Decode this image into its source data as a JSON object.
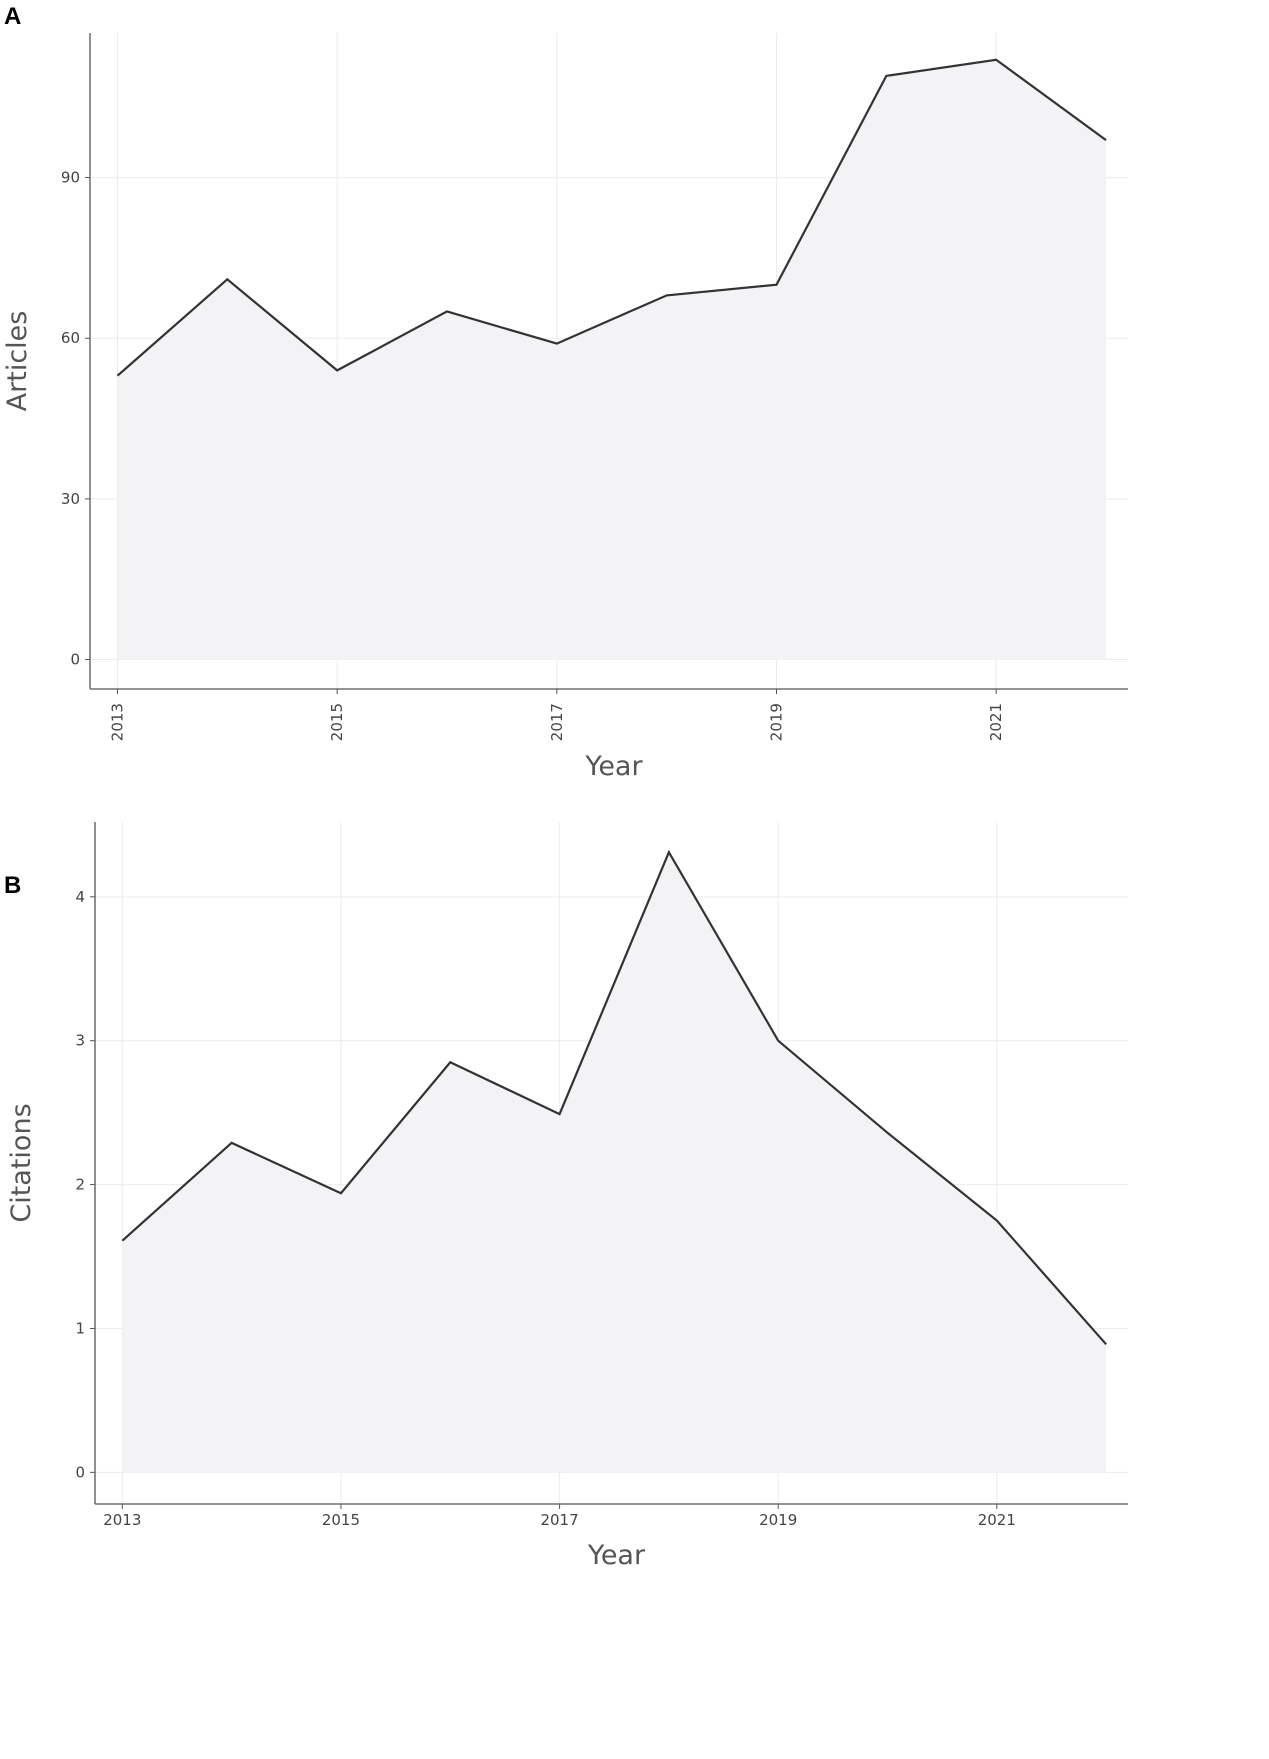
{
  "chart_data": [
    {
      "type": "area",
      "panel_label": "A",
      "xlabel": "Year",
      "ylabel": "Articles",
      "x": [
        2013,
        2014,
        2015,
        2016,
        2017,
        2018,
        2019,
        2020,
        2021,
        2022
      ],
      "values": [
        53,
        71,
        54,
        65,
        59,
        68,
        70,
        109,
        112,
        97
      ],
      "x_ticks": [
        "2013",
        "2015",
        "2017",
        "2019",
        "2021"
      ],
      "y_ticks": [
        "0",
        "30",
        "60",
        "90"
      ],
      "x_tick_rotation": "vertical",
      "xlim": [
        2012.75,
        2022.2
      ],
      "ylim": [
        -5.5,
        117
      ],
      "grid": true,
      "line_color": "#333333",
      "fill_color": "#f3f3f5"
    },
    {
      "type": "area",
      "panel_label": "B",
      "xlabel": "Year",
      "ylabel": "Citations",
      "x": [
        2013,
        2014,
        2015,
        2016,
        2017,
        2018,
        2019,
        2020,
        2021,
        2022
      ],
      "values": [
        1.61,
        2.29,
        1.94,
        2.85,
        2.49,
        4.31,
        3.0,
        2.36,
        1.75,
        0.89
      ],
      "x_ticks": [
        "2013",
        "2015",
        "2017",
        "2019",
        "2021"
      ],
      "y_ticks": [
        "0",
        "1",
        "2",
        "3",
        "4"
      ],
      "x_tick_rotation": "horizontal",
      "xlim": [
        2012.75,
        2022.2
      ],
      "ylim": [
        -0.22,
        4.52
      ],
      "grid": true,
      "line_color": "#333333",
      "fill_color": "#f3f3f5"
    }
  ]
}
